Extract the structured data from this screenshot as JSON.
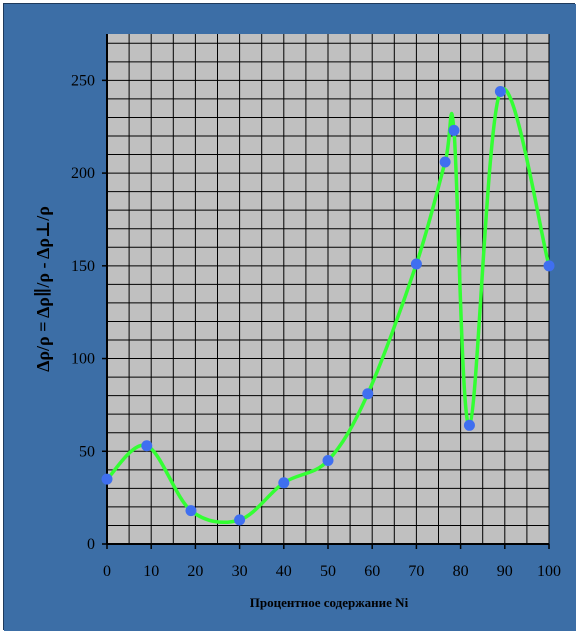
{
  "colors": {
    "background": "#3c6ea6",
    "plot_area": "#c0c0c0",
    "grid": "#000000",
    "line": "#33ff33",
    "marker": "#3f6ff0",
    "text": "#000000"
  },
  "chart_data": {
    "type": "line",
    "title": "",
    "xlabel": "Процентное содержание Ni",
    "ylabel": "Δρ/ρ = Δρ∥/ρ - Δρ⊥/ρ",
    "xlim": [
      0,
      100
    ],
    "ylim": [
      0,
      275
    ],
    "x_ticks": [
      0,
      10,
      20,
      30,
      40,
      50,
      60,
      70,
      80,
      90,
      100
    ],
    "y_ticks": [
      0,
      50,
      100,
      150,
      200,
      250
    ],
    "x_tick_labels": [
      "0",
      "10",
      "20",
      "30",
      "40",
      "50",
      "60",
      "70",
      "80",
      "90",
      "100"
    ],
    "y_tick_labels": [
      "0",
      "50",
      "100",
      "150",
      "200",
      "250"
    ],
    "grid": true,
    "smooth": true,
    "series": [
      {
        "x": [
          0,
          9,
          19,
          30,
          40,
          50,
          59,
          70,
          76.5,
          78.5,
          82,
          89,
          100
        ],
        "y": [
          35,
          53,
          18,
          13,
          33,
          45,
          81,
          151,
          206,
          223,
          64,
          244,
          150
        ]
      }
    ]
  }
}
